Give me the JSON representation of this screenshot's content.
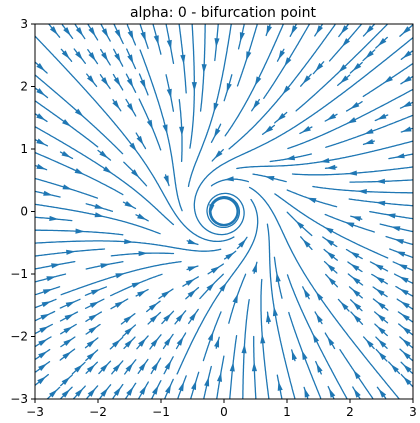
{
  "chart_data": {
    "type": "streamplot",
    "title": "alpha: 0 - bifurcation point",
    "xlabel": "",
    "ylabel": "",
    "xlim": [
      -3,
      3
    ],
    "ylim": [
      -3,
      3
    ],
    "xticks": [
      -3,
      -2,
      -1,
      0,
      1,
      2,
      3
    ],
    "yticks": [
      -3,
      -2,
      -1,
      0,
      1,
      2,
      3
    ],
    "xtick_labels": [
      "−3",
      "−2",
      "−1",
      "0",
      "1",
      "2",
      "3"
    ],
    "ytick_labels": [
      "−3",
      "−2",
      "−1",
      "0",
      "1",
      "2",
      "3"
    ],
    "grid": false,
    "legend": "none",
    "line_color": "#1f77b4",
    "vector_field": {
      "alpha": 0,
      "dx": "alpha*x - y - x*(x^2+y^2)",
      "dy": "x + alpha*y - y*(x^2+y^2)"
    }
  }
}
